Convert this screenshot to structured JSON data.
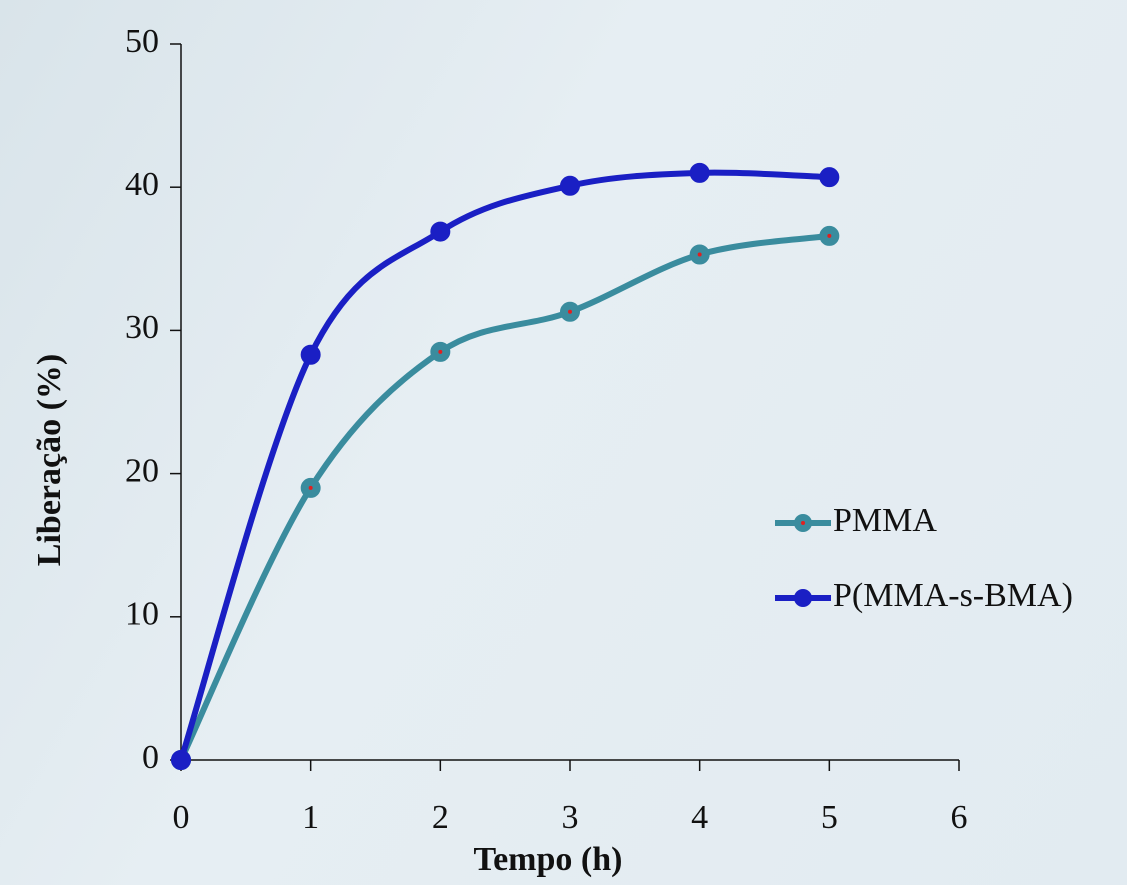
{
  "chart_data": {
    "type": "line",
    "x_label": "Tempo (h)",
    "y_label": "Liberação (%)",
    "x": [
      0,
      1,
      2,
      3,
      4,
      5
    ],
    "series": [
      {
        "name": "PMMA",
        "color": "#3a8c9e",
        "values": [
          0,
          19.0,
          28.5,
          31.3,
          35.3,
          36.6
        ]
      },
      {
        "name": "P(MMA-s-BMA)",
        "color": "#1a1fc4",
        "values": [
          0,
          28.3,
          36.9,
          40.1,
          41.0,
          40.7
        ]
      }
    ],
    "xlim": [
      0,
      6
    ],
    "xticks": [
      0,
      1,
      2,
      3,
      4,
      5,
      6
    ],
    "ylim": [
      0,
      50
    ],
    "yticks": [
      0,
      10,
      20,
      30,
      40,
      50
    ],
    "smooth": true,
    "legend": "right"
  }
}
